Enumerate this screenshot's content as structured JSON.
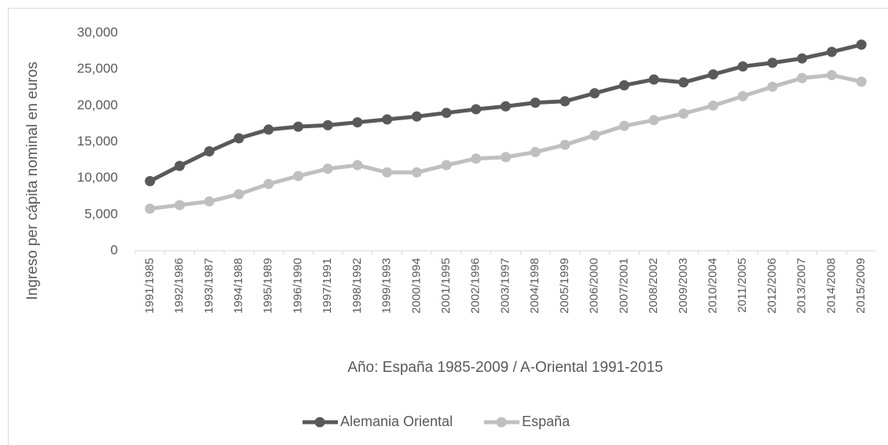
{
  "chart_data": {
    "type": "line",
    "ylabel": "Ingreso per cápita nominal en euros",
    "xlabel": "Año: España 1985-2009 / A-Oriental 1991-2015",
    "categories": [
      "1991/1985",
      "1992/1986",
      "1993/1987",
      "1994/1988",
      "1995/1989",
      "1996/1990",
      "1997/1991",
      "1998/1992",
      "1999/1993",
      "2000/1994",
      "2001/1995",
      "2002/1996",
      "2003/1997",
      "2004/1998",
      "2005/1999",
      "2006/2000",
      "2007/2001",
      "2008/2002",
      "2009/2003",
      "2010/2004",
      "2011/2005",
      "2012/2006",
      "2013/2007",
      "2014/2008",
      "2015/2009"
    ],
    "series": [
      {
        "name": "Alemania Oriental",
        "color": "#595959",
        "values": [
          9600,
          11700,
          13700,
          15500,
          16700,
          17100,
          17300,
          17700,
          18100,
          18500,
          19000,
          19500,
          19900,
          20400,
          20600,
          21700,
          22800,
          23600,
          23200,
          24300,
          25400,
          25900,
          26500,
          27400,
          28400
        ]
      },
      {
        "name": "España",
        "color": "#bfbfbf",
        "values": [
          5800,
          6300,
          6800,
          7800,
          9200,
          10300,
          11300,
          11800,
          10800,
          10800,
          11800,
          12700,
          12900,
          13600,
          14600,
          15900,
          17200,
          18000,
          18900,
          20000,
          21300,
          22600,
          23800,
          24200,
          23300
        ]
      }
    ],
    "ylim": [
      0,
      30000
    ],
    "yticks": [
      0,
      {
        "value": 5000,
        "label": "5,000"
      },
      {
        "value": 10000,
        "label": "10,000"
      },
      {
        "value": 15000,
        "label": "15,000"
      },
      {
        "value": 20000,
        "label": "20,000"
      },
      {
        "value": 25000,
        "label": "25,000"
      },
      {
        "value": 30000,
        "label": "30,000"
      }
    ],
    "legend": "bottom"
  }
}
